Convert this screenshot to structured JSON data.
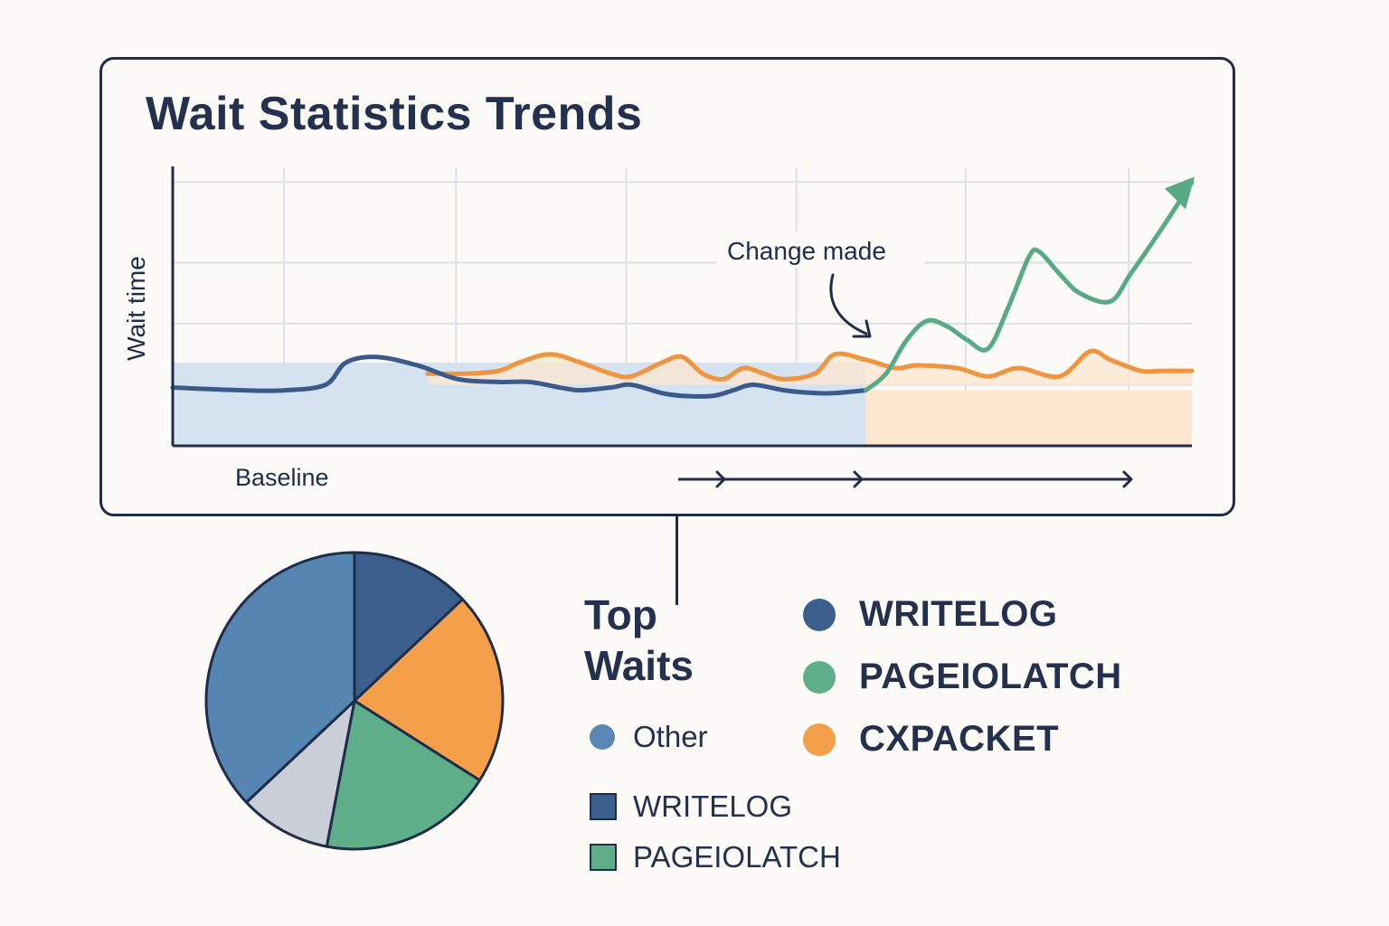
{
  "chart_data": [
    {
      "type": "area",
      "title": "Wait Statistics Trends",
      "ylabel": "Wait time",
      "xlabel": "",
      "grid": true,
      "baseline_label": "Baseline",
      "annotation": "Change made",
      "colors": {
        "baseline_fill": "#d4e3ef",
        "after_fill": "#fde6cf",
        "blue": "#3a5a8c",
        "orange": "#ef9440",
        "green": "#58a985",
        "axis": "#1f2d4a",
        "grid": "#dde0e6"
      },
      "series": [
        {
          "key": "blue",
          "x": [
            0,
            7,
            11,
            15,
            17,
            20,
            24,
            28,
            32,
            35,
            38,
            40,
            43,
            45,
            48,
            50,
            53,
            55,
            57,
            60,
            63,
            65,
            68
          ],
          "y": [
            21,
            20,
            20,
            22,
            30,
            32,
            29,
            24,
            23,
            23,
            21,
            20,
            21,
            22,
            19,
            18,
            18,
            20,
            22,
            20,
            19,
            19,
            20
          ]
        },
        {
          "key": "orange",
          "x": [
            25,
            29,
            32,
            34,
            37,
            40,
            43,
            45,
            48,
            50,
            52,
            54,
            56,
            58,
            60,
            63,
            65,
            68,
            71,
            73,
            77,
            80,
            83,
            87,
            90,
            92,
            95,
            97,
            100
          ],
          "y": [
            26,
            26,
            27,
            30,
            33,
            30,
            26,
            25,
            30,
            32,
            26,
            24,
            28,
            26,
            24,
            26,
            33,
            31,
            28,
            29,
            28,
            25,
            28,
            25,
            34,
            31,
            27,
            27,
            27
          ]
        },
        {
          "key": "green",
          "x": [
            68,
            70,
            72,
            74,
            76,
            78,
            80,
            82,
            84,
            85,
            87,
            89,
            92,
            94,
            97,
            100
          ],
          "y": [
            20,
            26,
            38,
            45,
            43,
            38,
            35,
            50,
            68,
            70,
            62,
            55,
            52,
            62,
            78,
            95
          ]
        }
      ],
      "areas": [
        {
          "key": "baseline_fill",
          "x": [
            0,
            68
          ],
          "y": 30
        },
        {
          "key": "after_fill",
          "x": [
            68,
            100
          ],
          "y": 20
        }
      ]
    },
    {
      "type": "pie",
      "title": "Top Waits",
      "slices": [
        {
          "label": "WRITELOG",
          "value": 13,
          "color": "#3c5e8c"
        },
        {
          "label": "CXPACKET",
          "value": 21,
          "color": "#f4a04a"
        },
        {
          "label": "PAGEIOLATCH",
          "value": 19,
          "color": "#5fae8a"
        },
        {
          "label": "",
          "value": 10,
          "color": "#c9ced9"
        },
        {
          "label": "Other",
          "value": 37,
          "color": "#5685b1"
        }
      ]
    }
  ],
  "legend": {
    "main": [
      {
        "label": "WRITELOG",
        "color": "#3c5e8c"
      },
      {
        "label": "PAGEIOLATCH",
        "color": "#5fae8a"
      },
      {
        "label": "CXPACKET",
        "color": "#f4a04a"
      }
    ],
    "other": {
      "label": "Other",
      "color": "#5a86b4"
    },
    "squares": [
      {
        "label": "WRITELOG",
        "color": "#3c5e8c"
      },
      {
        "label": "PAGEIOLATCH",
        "color": "#5fae8a"
      }
    ]
  }
}
